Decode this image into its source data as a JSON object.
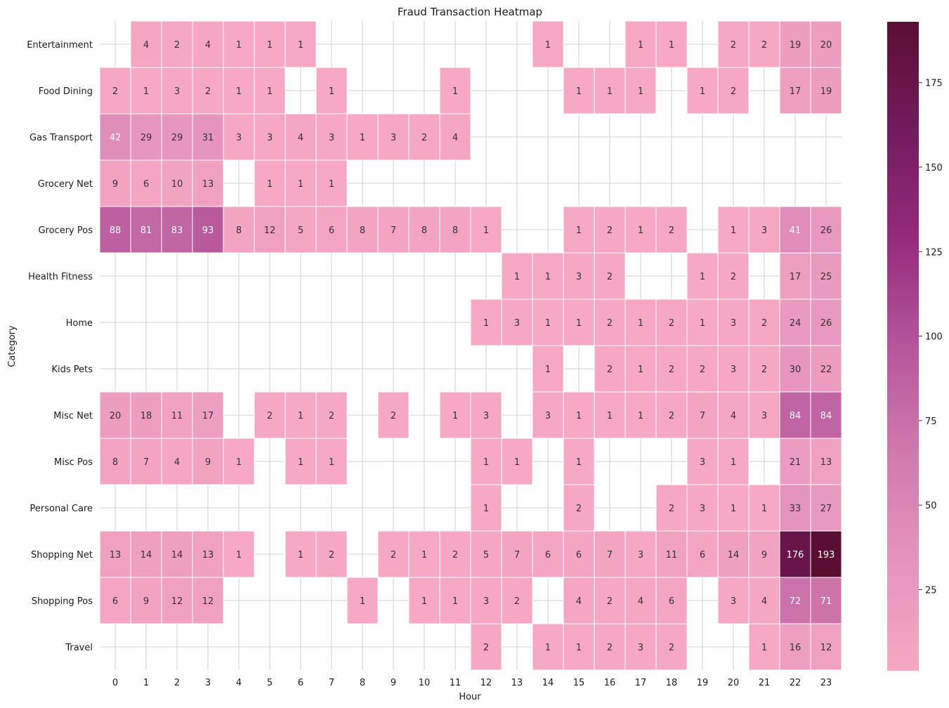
{
  "chart_data": {
    "type": "heatmap",
    "title": "Fraud Transaction Heatmap",
    "xlabel": "Hour",
    "ylabel": "Category",
    "x": [
      0,
      1,
      2,
      3,
      4,
      5,
      6,
      7,
      8,
      9,
      10,
      11,
      12,
      13,
      14,
      15,
      16,
      17,
      18,
      19,
      20,
      21,
      22,
      23
    ],
    "y": [
      "Entertainment",
      "Food Dining",
      "Gas Transport",
      "Grocery Net",
      "Grocery Pos",
      "Health Fitness",
      "Home",
      "Kids Pets",
      "Misc Net",
      "Misc Pos",
      "Personal Care",
      "Shopping Net",
      "Shopping Pos",
      "Travel"
    ],
    "values": [
      [
        null,
        4,
        2,
        4,
        1,
        1,
        1,
        null,
        null,
        null,
        null,
        null,
        null,
        null,
        1,
        null,
        null,
        1,
        1,
        null,
        2,
        2,
        19,
        20
      ],
      [
        2,
        1,
        3,
        2,
        1,
        1,
        null,
        1,
        null,
        null,
        null,
        1,
        null,
        null,
        null,
        1,
        1,
        1,
        null,
        1,
        2,
        null,
        17,
        19
      ],
      [
        42,
        29,
        29,
        31,
        3,
        3,
        4,
        3,
        1,
        3,
        2,
        4,
        null,
        null,
        null,
        null,
        null,
        null,
        null,
        null,
        null,
        null,
        null,
        null
      ],
      [
        9,
        6,
        10,
        13,
        null,
        1,
        1,
        1,
        null,
        null,
        null,
        null,
        null,
        null,
        null,
        null,
        null,
        null,
        null,
        null,
        null,
        null,
        null,
        null
      ],
      [
        88,
        81,
        83,
        93,
        8,
        12,
        5,
        6,
        8,
        7,
        8,
        8,
        1,
        null,
        null,
        1,
        2,
        1,
        2,
        null,
        1,
        3,
        41,
        26
      ],
      [
        null,
        null,
        null,
        null,
        null,
        null,
        null,
        null,
        null,
        null,
        null,
        null,
        null,
        1,
        1,
        3,
        2,
        null,
        null,
        1,
        2,
        null,
        17,
        25
      ],
      [
        null,
        null,
        null,
        null,
        null,
        null,
        null,
        null,
        null,
        null,
        null,
        null,
        1,
        3,
        1,
        1,
        2,
        1,
        2,
        1,
        3,
        2,
        24,
        26
      ],
      [
        null,
        null,
        null,
        null,
        null,
        null,
        null,
        null,
        null,
        null,
        null,
        null,
        null,
        null,
        1,
        null,
        2,
        1,
        2,
        2,
        3,
        2,
        30,
        22
      ],
      [
        20,
        18,
        11,
        17,
        null,
        2,
        1,
        2,
        null,
        2,
        null,
        1,
        3,
        null,
        3,
        1,
        1,
        1,
        2,
        7,
        4,
        3,
        84,
        84
      ],
      [
        8,
        7,
        4,
        9,
        1,
        null,
        1,
        1,
        null,
        null,
        null,
        null,
        1,
        1,
        null,
        1,
        null,
        null,
        null,
        3,
        1,
        null,
        21,
        13
      ],
      [
        null,
        null,
        null,
        null,
        null,
        null,
        null,
        null,
        null,
        null,
        null,
        null,
        1,
        null,
        null,
        2,
        null,
        null,
        2,
        3,
        1,
        1,
        33,
        27
      ],
      [
        13,
        14,
        14,
        13,
        1,
        null,
        1,
        2,
        null,
        2,
        1,
        2,
        5,
        7,
        6,
        6,
        7,
        3,
        11,
        6,
        14,
        9,
        176,
        193
      ],
      [
        6,
        9,
        12,
        12,
        null,
        null,
        null,
        null,
        1,
        null,
        1,
        1,
        3,
        2,
        null,
        4,
        2,
        4,
        6,
        null,
        3,
        4,
        72,
        71
      ],
      [
        null,
        null,
        null,
        null,
        null,
        null,
        null,
        null,
        null,
        null,
        null,
        null,
        2,
        null,
        1,
        1,
        2,
        3,
        2,
        null,
        null,
        1,
        16,
        12
      ]
    ],
    "colorbar": {
      "vmin": 1,
      "vmax": 193,
      "ticks": [
        25,
        50,
        75,
        100,
        125,
        150,
        175
      ],
      "colors": [
        "#f6a8c4",
        "#e595bd",
        "#d17aae",
        "#b5559b",
        "#932b7d",
        "#741a5e",
        "#5a0f32"
      ]
    },
    "grid": true
  }
}
